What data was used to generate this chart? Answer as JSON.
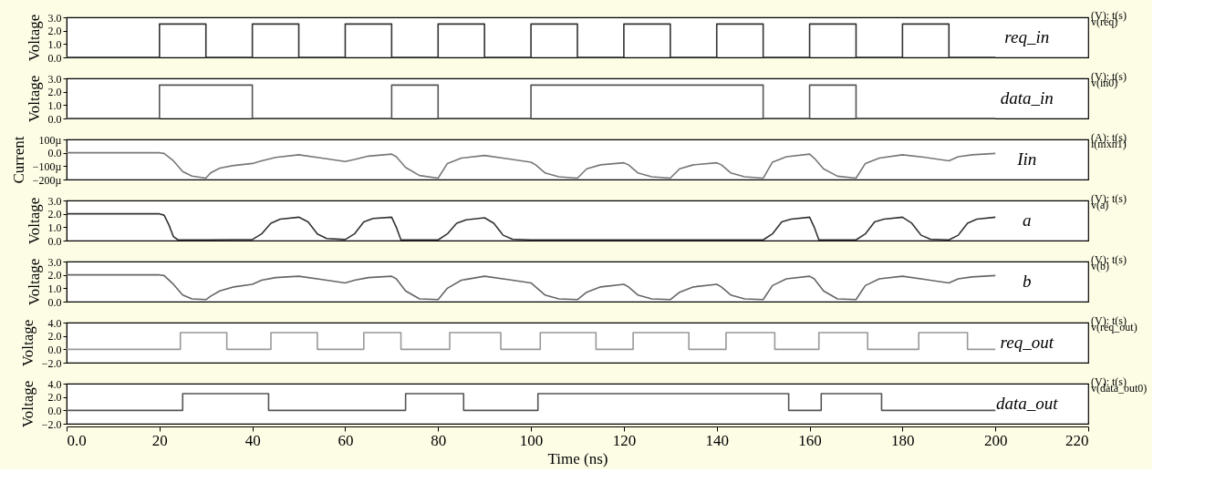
{
  "chart_data": [
    {
      "type": "line",
      "ylabel": "Voltage",
      "xlim": [
        0,
        220
      ],
      "ylim": [
        0,
        3
      ],
      "yticks": [
        {
          "value": 0,
          "label": "0.0"
        },
        {
          "value": 1,
          "label": "1.0"
        },
        {
          "value": 2,
          "label": "2.0"
        },
        {
          "value": 3,
          "label": "3.0"
        }
      ],
      "tick_labels": "y",
      "annotations": [
        "(V): t(s)",
        "v(req)"
      ],
      "x": [
        0,
        20,
        20,
        30,
        30,
        40,
        40,
        50,
        50,
        60,
        60,
        70,
        70,
        80,
        80,
        90,
        90,
        100,
        100,
        110,
        110,
        120,
        120,
        130,
        130,
        140,
        140,
        150,
        150,
        160,
        160,
        170,
        170,
        180,
        180,
        190,
        190,
        200
      ],
      "series": [
        {
          "name": "req_in",
          "color": "#333333",
          "values": [
            0,
            0,
            2.5,
            2.5,
            0,
            0,
            2.5,
            2.5,
            0,
            0,
            2.5,
            2.5,
            0,
            0,
            2.5,
            2.5,
            0,
            0,
            2.5,
            2.5,
            0,
            0,
            2.5,
            2.5,
            0,
            0,
            2.5,
            2.5,
            0,
            0,
            2.5,
            2.5,
            0,
            0,
            2.5,
            2.5,
            0,
            0
          ]
        }
      ]
    },
    {
      "type": "line",
      "ylabel": "Voltage",
      "xlim": [
        0,
        220
      ],
      "ylim": [
        0,
        3
      ],
      "yticks": [
        {
          "value": 0,
          "label": "0.0"
        },
        {
          "value": 1,
          "label": "1.0"
        },
        {
          "value": 2,
          "label": "2.0"
        },
        {
          "value": 3,
          "label": "3.0"
        }
      ],
      "tick_labels": "y",
      "annotations": [
        "(V): t(s)",
        "v(in0)"
      ],
      "x": [
        0,
        20,
        20,
        40,
        40,
        70,
        70,
        80,
        80,
        100,
        100,
        150,
        150,
        160,
        160,
        170,
        170,
        200
      ],
      "series": [
        {
          "name": "data_in",
          "color": "#555555",
          "values": [
            0,
            0,
            2.5,
            2.5,
            0,
            0,
            2.5,
            2.5,
            0,
            0,
            2.5,
            2.5,
            0,
            0,
            2.5,
            2.5,
            0,
            0
          ]
        }
      ]
    },
    {
      "type": "line",
      "ylabel": "Current",
      "xlim": [
        0,
        220
      ],
      "ylim": [
        -200,
        100
      ],
      "yticks": [
        {
          "value": 100,
          "label": "100µ"
        },
        {
          "value": 0,
          "label": "0.0"
        },
        {
          "value": -100,
          "label": "−100µ"
        },
        {
          "value": -200,
          "label": "−200µ"
        }
      ],
      "tick_labels": "y",
      "annotations": [
        "(A): t(s)",
        "i(mxn1)"
      ],
      "x": [
        0,
        20,
        21,
        23,
        25,
        27,
        30,
        31,
        33,
        36,
        40,
        42,
        45,
        50,
        55,
        60,
        62,
        65,
        70,
        71,
        73,
        76,
        80,
        82,
        85,
        90,
        95,
        100,
        101,
        103,
        106,
        110,
        112,
        115,
        120,
        121,
        123,
        126,
        130,
        132,
        135,
        140,
        141,
        143,
        146,
        150,
        152,
        155,
        160,
        161,
        163,
        166,
        170,
        172,
        175,
        180,
        185,
        190,
        192,
        195,
        200
      ],
      "series": [
        {
          "name": "Iin",
          "color": "#777777",
          "values": [
            0,
            0,
            -5,
            -60,
            -140,
            -175,
            -190,
            -150,
            -115,
            -95,
            -80,
            -60,
            -35,
            -15,
            -40,
            -65,
            -50,
            -25,
            -10,
            -30,
            -110,
            -170,
            -190,
            -80,
            -40,
            -20,
            -45,
            -70,
            -90,
            -150,
            -180,
            -190,
            -120,
            -90,
            -75,
            -90,
            -150,
            -180,
            -190,
            -120,
            -90,
            -75,
            -90,
            -150,
            -180,
            -190,
            -70,
            -30,
            -10,
            -40,
            -120,
            -175,
            -190,
            -80,
            -40,
            -15,
            -35,
            -60,
            -30,
            -15,
            -5
          ]
        }
      ]
    },
    {
      "type": "line",
      "ylabel": "Voltage",
      "xlim": [
        0,
        220
      ],
      "ylim": [
        0,
        3
      ],
      "yticks": [
        {
          "value": 0,
          "label": "0.0"
        },
        {
          "value": 1,
          "label": "1.0"
        },
        {
          "value": 2,
          "label": "2.0"
        },
        {
          "value": 3,
          "label": "3.0"
        }
      ],
      "tick_labels": "y",
      "annotations": [
        "(V): t(s)",
        "v(a)"
      ],
      "x": [
        0,
        20,
        21,
        22,
        23,
        24,
        30,
        40,
        42,
        44,
        46,
        50,
        52,
        54,
        56,
        60,
        62,
        64,
        66,
        70,
        71,
        72,
        80,
        82,
        84,
        86,
        90,
        92,
        94,
        96,
        100,
        150,
        152,
        154,
        156,
        160,
        161,
        162,
        170,
        172,
        174,
        176,
        180,
        182,
        184,
        186,
        190,
        192,
        194,
        196,
        200
      ],
      "series": [
        {
          "name": "a",
          "color": "#333333",
          "values": [
            2,
            2,
            1.9,
            1.2,
            0.3,
            0.05,
            0.05,
            0.08,
            0.5,
            1.3,
            1.6,
            1.75,
            1.4,
            0.5,
            0.15,
            0.08,
            0.5,
            1.4,
            1.65,
            1.75,
            1.0,
            0.05,
            0.05,
            0.5,
            1.3,
            1.55,
            1.7,
            1.3,
            0.4,
            0.1,
            0.05,
            0.05,
            0.5,
            1.4,
            1.6,
            1.75,
            1.0,
            0.05,
            0.05,
            0.5,
            1.4,
            1.6,
            1.75,
            1.3,
            0.4,
            0.1,
            0.05,
            0.4,
            1.3,
            1.6,
            1.75
          ]
        }
      ]
    },
    {
      "type": "line",
      "ylabel": "Voltage",
      "xlim": [
        0,
        220
      ],
      "ylim": [
        0,
        3
      ],
      "yticks": [
        {
          "value": 0,
          "label": "0.0"
        },
        {
          "value": 1,
          "label": "1.0"
        },
        {
          "value": 2,
          "label": "2.0"
        },
        {
          "value": 3,
          "label": "3.0"
        }
      ],
      "tick_labels": "y",
      "annotations": [
        "(V): t(s)",
        "v(b)"
      ],
      "x": [
        0,
        20,
        21,
        23,
        25,
        27,
        30,
        31,
        33,
        36,
        40,
        42,
        45,
        50,
        55,
        60,
        62,
        65,
        70,
        71,
        73,
        76,
        80,
        82,
        85,
        90,
        95,
        100,
        101,
        103,
        106,
        110,
        112,
        115,
        120,
        121,
        123,
        126,
        130,
        132,
        135,
        140,
        141,
        143,
        146,
        150,
        152,
        155,
        160,
        161,
        163,
        166,
        170,
        172,
        175,
        180,
        185,
        190,
        192,
        195,
        200
      ],
      "series": [
        {
          "name": "b",
          "color": "#666666",
          "values": [
            2,
            2,
            1.95,
            1.3,
            0.5,
            0.2,
            0.15,
            0.4,
            0.8,
            1.1,
            1.3,
            1.6,
            1.8,
            1.9,
            1.65,
            1.4,
            1.6,
            1.8,
            1.9,
            1.7,
            0.8,
            0.2,
            0.15,
            1.0,
            1.6,
            1.9,
            1.65,
            1.4,
            1.1,
            0.5,
            0.2,
            0.15,
            0.7,
            1.1,
            1.3,
            1.1,
            0.5,
            0.2,
            0.15,
            0.7,
            1.1,
            1.3,
            1.1,
            0.5,
            0.2,
            0.15,
            1.2,
            1.7,
            1.9,
            1.7,
            0.8,
            0.2,
            0.15,
            1.2,
            1.7,
            1.9,
            1.65,
            1.4,
            1.7,
            1.85,
            1.95
          ]
        }
      ]
    },
    {
      "type": "line",
      "ylabel": "Voltage",
      "xlim": [
        0,
        220
      ],
      "ylim": [
        -2,
        4
      ],
      "yticks": [
        {
          "value": -2,
          "label": "−2.0"
        },
        {
          "value": 0,
          "label": "0.0"
        },
        {
          "value": 2,
          "label": "2.0"
        },
        {
          "value": 4,
          "label": "4.0"
        }
      ],
      "tick_labels": "y",
      "annotations": [
        "(V): t(s)",
        "v(req_out)"
      ],
      "x": [
        0,
        24.5,
        24.5,
        34.5,
        34.5,
        44,
        44,
        54,
        54,
        64,
        64,
        72,
        72,
        82.5,
        82.5,
        93.5,
        93.5,
        102,
        102,
        114,
        114,
        122,
        122,
        134,
        134,
        142,
        142,
        152.5,
        152.5,
        162,
        162,
        172.5,
        172.5,
        183.5,
        183.5,
        194,
        194,
        200
      ],
      "series": [
        {
          "name": "req_out",
          "color": "#999999",
          "values": [
            0,
            0,
            2.5,
            2.5,
            0,
            0,
            2.5,
            2.5,
            0,
            0,
            2.5,
            2.5,
            0,
            0,
            2.5,
            2.5,
            0,
            0,
            2.5,
            2.5,
            0,
            0,
            2.5,
            2.5,
            0,
            0,
            2.5,
            2.5,
            0,
            0,
            2.5,
            2.5,
            0,
            0,
            2.5,
            2.5,
            0,
            0
          ]
        }
      ]
    },
    {
      "type": "line",
      "ylabel": "Voltage",
      "xlabel": "Time (ns)",
      "xlim": [
        0,
        220
      ],
      "xticks": [
        {
          "value": 0,
          "label": "0.0"
        },
        20,
        40,
        60,
        80,
        100,
        120,
        140,
        160,
        180,
        200,
        220
      ],
      "ylim": [
        -2,
        4
      ],
      "yticks": [
        {
          "value": -2,
          "label": "−2.0"
        },
        {
          "value": 0,
          "label": "0.0"
        },
        {
          "value": 2,
          "label": "2.0"
        },
        {
          "value": 4,
          "label": "4.0"
        }
      ],
      "annotations": [
        "(V): t(s)",
        "v(data_out0)"
      ],
      "x": [
        0,
        25,
        25,
        43.5,
        43.5,
        73,
        73,
        85.5,
        85.5,
        101.5,
        101.5,
        155.5,
        155.5,
        162.5,
        162.5,
        175.5,
        175.5,
        200
      ],
      "series": [
        {
          "name": "data_out",
          "color": "#555555",
          "values": [
            0,
            0,
            2.5,
            2.5,
            0,
            0,
            2.5,
            2.5,
            0,
            0,
            2.5,
            2.5,
            0,
            0,
            2.5,
            2.5,
            0,
            0
          ]
        }
      ]
    }
  ]
}
